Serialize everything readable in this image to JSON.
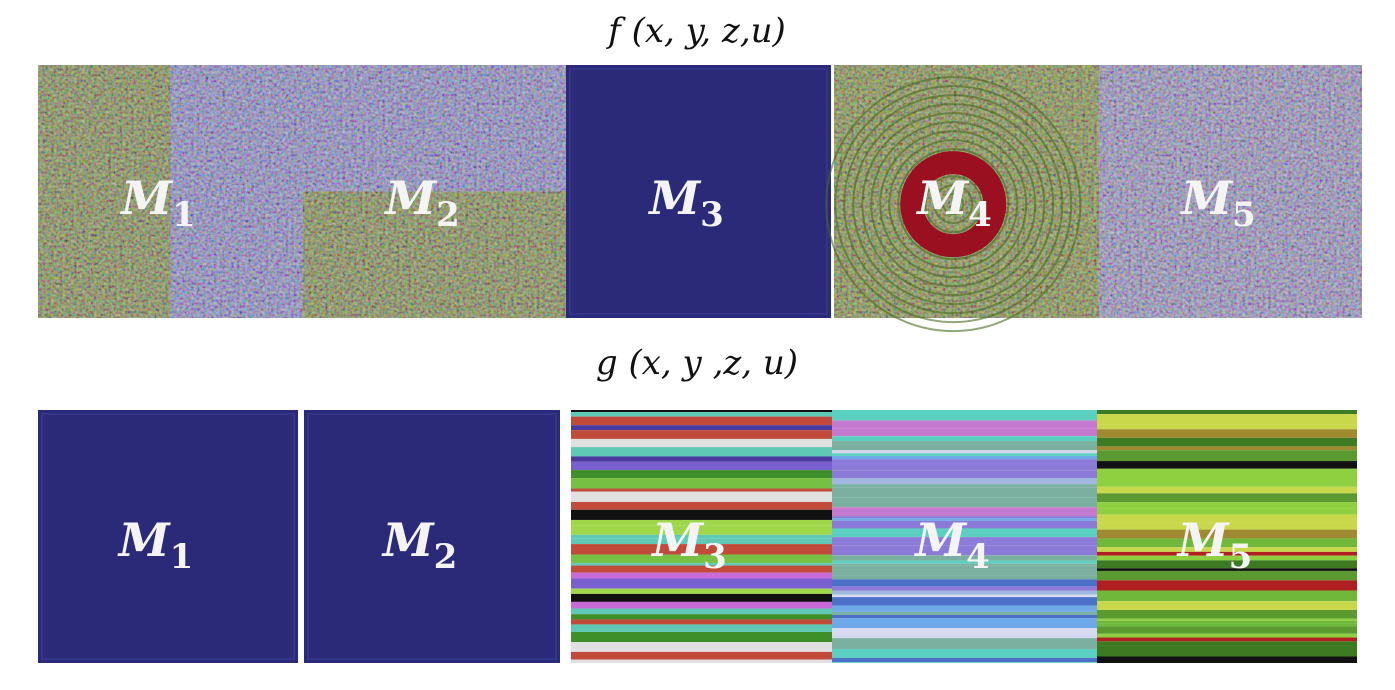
{
  "rows": [
    {
      "title": "f (x, y, z,u)",
      "panels": [
        {
          "label": "M",
          "subscript": "1"
        },
        {
          "label": "M",
          "subscript": "2"
        },
        {
          "label": "M",
          "subscript": "3"
        },
        {
          "label": "M",
          "subscript": "4"
        },
        {
          "label": "M",
          "subscript": "5"
        }
      ]
    },
    {
      "title": "g (x, y ,z, u)",
      "panels": [
        {
          "label": "M",
          "subscript": "1"
        },
        {
          "label": "M",
          "subscript": "2"
        },
        {
          "label": "M",
          "subscript": "3"
        },
        {
          "label": "M",
          "subscript": "4"
        },
        {
          "label": "M",
          "subscript": "5"
        }
      ]
    }
  ]
}
